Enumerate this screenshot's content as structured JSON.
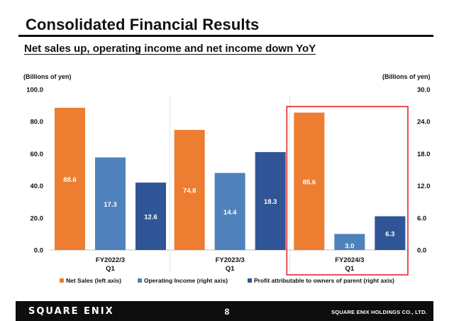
{
  "slide": {
    "title": "Consolidated Financial Results",
    "subtitle": "Net sales up, operating income and net income down YoY",
    "page_number": "8"
  },
  "footer": {
    "logo_text": "SQUARE ENIX",
    "company": "SQUARE ENIX HOLDINGS CO., LTD."
  },
  "colors": {
    "net_sales": "#ED7D31",
    "operating_income": "#4F81BD",
    "profit": "#2F5597",
    "highlight": "#E0282E"
  },
  "chart_data": {
    "type": "bar",
    "left_axis_label": "(Billions of yen)",
    "right_axis_label": "(Billions of yen)",
    "left_ylim": [
      0,
      100
    ],
    "right_ylim": [
      0,
      30
    ],
    "left_ticks": [
      "100.0",
      "80.0",
      "60.0",
      "40.0",
      "20.0",
      "0.0"
    ],
    "right_ticks": [
      "30.0",
      "24.0",
      "18.0",
      "12.0",
      "6.0",
      "0.0"
    ],
    "categories": [
      {
        "line1": "FY2022/3",
        "line2": "Q1"
      },
      {
        "line1": "FY2023/3",
        "line2": "Q1"
      },
      {
        "line1": "FY2024/3",
        "line2": "Q1"
      }
    ],
    "series": [
      {
        "name": "Net Sales (left axis)",
        "axis": "left",
        "color_key": "net_sales",
        "values": [
          88.6,
          74.8,
          85.6
        ],
        "labels": [
          "88.6",
          "74.8",
          "85.6"
        ]
      },
      {
        "name": "Operating Income (right axis)",
        "axis": "right",
        "color_key": "operating_income",
        "values": [
          17.3,
          14.4,
          3.0
        ],
        "labels": [
          "17.3",
          "14.4",
          "3.0"
        ]
      },
      {
        "name": "Profit attributable to owners of parent (right axis)",
        "axis": "right",
        "color_key": "profit",
        "values": [
          12.6,
          18.3,
          6.3
        ],
        "labels": [
          "12.6",
          "18.3",
          "6.3"
        ]
      }
    ],
    "highlighted_category": 2,
    "grid": false,
    "legend_position": "bottom"
  }
}
